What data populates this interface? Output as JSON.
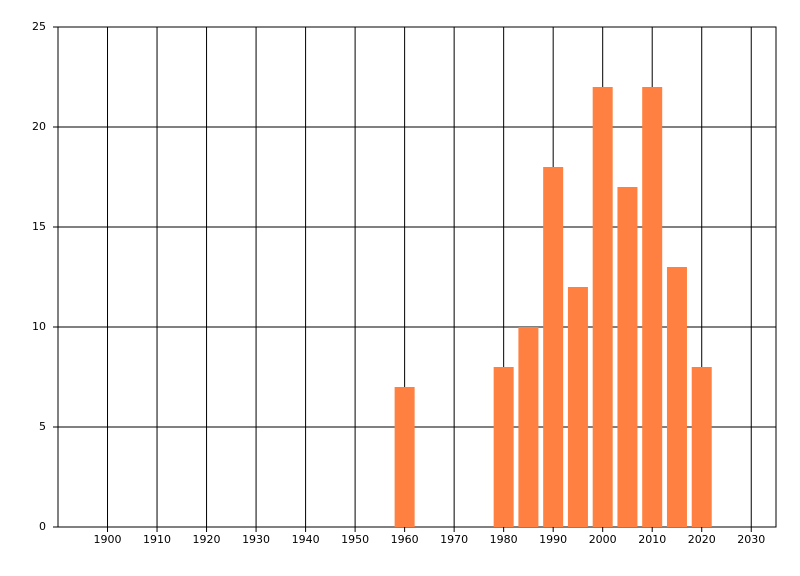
{
  "chart_data": {
    "type": "bar",
    "x": [
      1960,
      1980,
      1985,
      1990,
      1995,
      2000,
      2005,
      2010,
      2015,
      2020
    ],
    "values": [
      7,
      8,
      10,
      18,
      12,
      22,
      17,
      22,
      13,
      8
    ],
    "color": "#ff8040",
    "xlim": [
      1890,
      2035
    ],
    "xticks": [
      1900,
      1910,
      1920,
      1930,
      1940,
      1950,
      1960,
      1970,
      1980,
      1990,
      2000,
      2010,
      2020,
      2030
    ],
    "ylim": [
      0,
      25
    ],
    "yticks": [
      0,
      5,
      10,
      15,
      20,
      25
    ],
    "grid": true
  }
}
